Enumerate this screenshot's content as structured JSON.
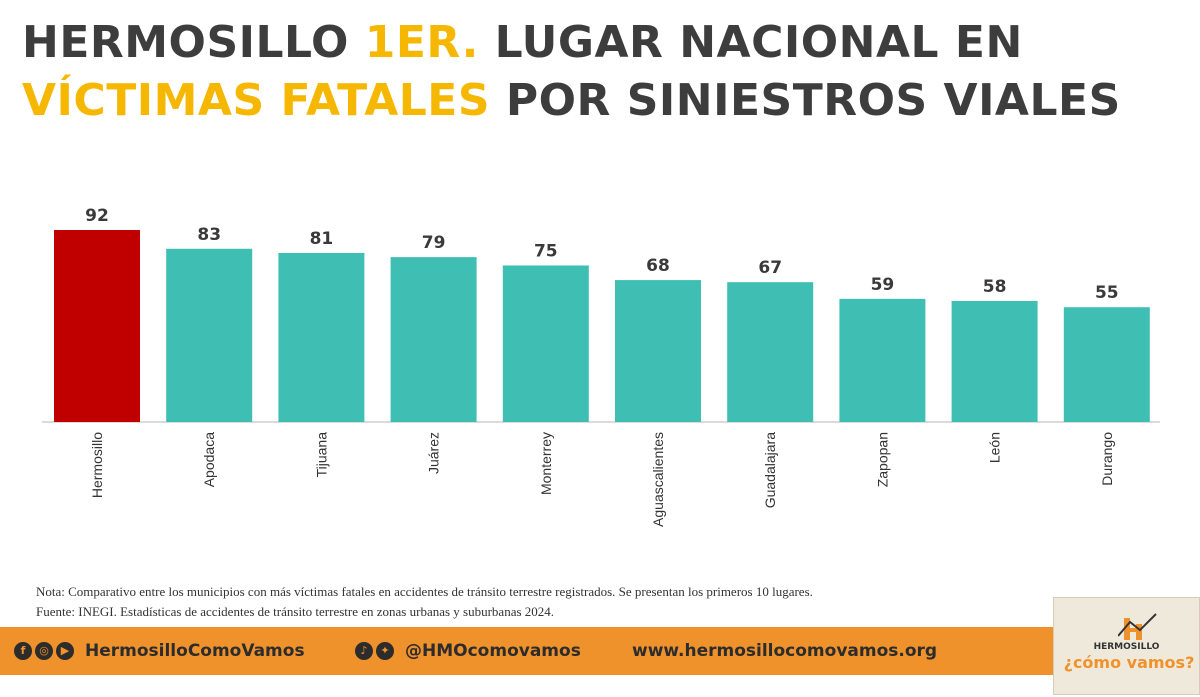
{
  "title": {
    "part1": "Hermosillo ",
    "highlight1": "1er.",
    "part2": " lugar nacional en ",
    "highlight2": "víctimas fatales",
    "part3": " por siniestros viales"
  },
  "colors": {
    "highlight": "#f5b700",
    "highlighted_bar": "#c00000",
    "bar": "#3fbfb4",
    "footer": "#f0922b"
  },
  "chart_data": {
    "type": "bar",
    "categories": [
      "Hermosillo",
      "Apodaca",
      "Tijuana",
      "Juárez",
      "Monterrey",
      "Aguascalientes",
      "Guadalajara",
      "Zapopan",
      "León",
      "Durango"
    ],
    "values": [
      92,
      83,
      81,
      79,
      75,
      68,
      67,
      59,
      58,
      55
    ],
    "highlight_index": 0,
    "ylim": [
      0,
      92
    ],
    "grid": false,
    "data_labels": true,
    "label_orientation": "vertical"
  },
  "notes": {
    "note": "Nota: Comparativo entre los municipios con más víctimas fatales en accidentes de tránsito terrestre registrados. Se presentan los primeros 10 lugares.",
    "source": "Fuente: INEGI. Estadísticas de accidentes de tránsito terrestre en zonas urbanas y suburbanas 2024."
  },
  "footer": {
    "facebook_instagram_youtube": "HermosilloComoVamos",
    "tiktok_twitter": "@HMOcomovamos",
    "website": "www.hermosillocomovamos.org",
    "icons": [
      "facebook-icon",
      "instagram-icon",
      "youtube-icon",
      "tiktok-icon",
      "twitter-icon"
    ]
  },
  "logo": {
    "name": "HERMOSILLO",
    "tagline": "¿cómo vamos?"
  }
}
